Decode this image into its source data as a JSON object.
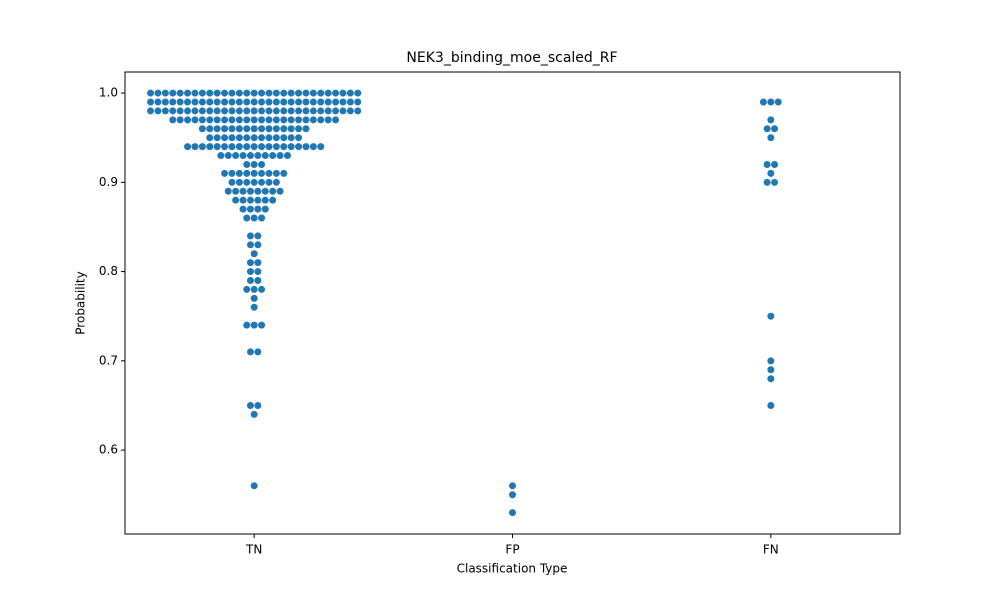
{
  "chart_data": {
    "type": "swarm",
    "title": "NEK3_binding_moe_scaled_RF",
    "xlabel": "Classification Type",
    "ylabel": "Probability",
    "categories": [
      "TN",
      "FP",
      "FN"
    ],
    "color": "#1f77b4",
    "values": [
      [
        1,
        1,
        1,
        1,
        1,
        1,
        1,
        1,
        1,
        1,
        1,
        1,
        1,
        1,
        1,
        1,
        1,
        1,
        1,
        1,
        1,
        1,
        1,
        1,
        1,
        1,
        1,
        1,
        1,
        0.99,
        0.99,
        0.99,
        0.99,
        0.99,
        0.99,
        0.99,
        0.99,
        0.99,
        0.99,
        0.99,
        0.99,
        0.99,
        0.99,
        0.99,
        0.99,
        0.99,
        0.99,
        0.99,
        0.99,
        0.99,
        0.99,
        0.99,
        0.99,
        0.99,
        0.99,
        0.99,
        0.99,
        0.99,
        0.98,
        0.98,
        0.98,
        0.98,
        0.98,
        0.98,
        0.98,
        0.98,
        0.98,
        0.98,
        0.98,
        0.98,
        0.98,
        0.98,
        0.98,
        0.98,
        0.98,
        0.98,
        0.98,
        0.98,
        0.98,
        0.98,
        0.98,
        0.98,
        0.98,
        0.98,
        0.98,
        0.98,
        0.98,
        0.97,
        0.97,
        0.97,
        0.97,
        0.97,
        0.97,
        0.97,
        0.97,
        0.97,
        0.97,
        0.97,
        0.97,
        0.97,
        0.97,
        0.97,
        0.97,
        0.97,
        0.97,
        0.97,
        0.97,
        0.97,
        0.97,
        0.97,
        0.96,
        0.96,
        0.96,
        0.96,
        0.96,
        0.96,
        0.96,
        0.96,
        0.96,
        0.96,
        0.96,
        0.96,
        0.96,
        0.96,
        0.96,
        0.95,
        0.95,
        0.95,
        0.95,
        0.95,
        0.95,
        0.95,
        0.95,
        0.95,
        0.95,
        0.95,
        0.95,
        0.95,
        0.94,
        0.94,
        0.94,
        0.94,
        0.94,
        0.94,
        0.94,
        0.94,
        0.94,
        0.94,
        0.94,
        0.94,
        0.94,
        0.94,
        0.94,
        0.94,
        0.94,
        0.94,
        0.94,
        0.93,
        0.93,
        0.93,
        0.93,
        0.93,
        0.93,
        0.93,
        0.93,
        0.93,
        0.93,
        0.92,
        0.92,
        0.92,
        0.91,
        0.91,
        0.91,
        0.91,
        0.91,
        0.91,
        0.91,
        0.91,
        0.91,
        0.9,
        0.9,
        0.9,
        0.9,
        0.9,
        0.9,
        0.9,
        0.89,
        0.89,
        0.89,
        0.89,
        0.89,
        0.89,
        0.89,
        0.89,
        0.88,
        0.88,
        0.88,
        0.88,
        0.88,
        0.88,
        0.87,
        0.87,
        0.87,
        0.87,
        0.86,
        0.86,
        0.86,
        0.84,
        0.84,
        0.83,
        0.83,
        0.82,
        0.81,
        0.81,
        0.8,
        0.8,
        0.79,
        0.79,
        0.78,
        0.78,
        0.78,
        0.77,
        0.76,
        0.74,
        0.74,
        0.74,
        0.71,
        0.71,
        0.65,
        0.65,
        0.64,
        0.56
      ],
      [
        0.56,
        0.55,
        0.53
      ],
      [
        0.99,
        0.99,
        0.99,
        0.97,
        0.96,
        0.96,
        0.95,
        0.92,
        0.92,
        0.91,
        0.9,
        0.9,
        0.75,
        0.7,
        0.69,
        0.68,
        0.65
      ]
    ],
    "ylim": [
      0.506,
      1.0236
    ],
    "yticks": [
      0.6,
      0.7,
      0.8,
      0.9,
      {
        "value": 1,
        "label": "1.0"
      }
    ],
    "grid": false
  }
}
